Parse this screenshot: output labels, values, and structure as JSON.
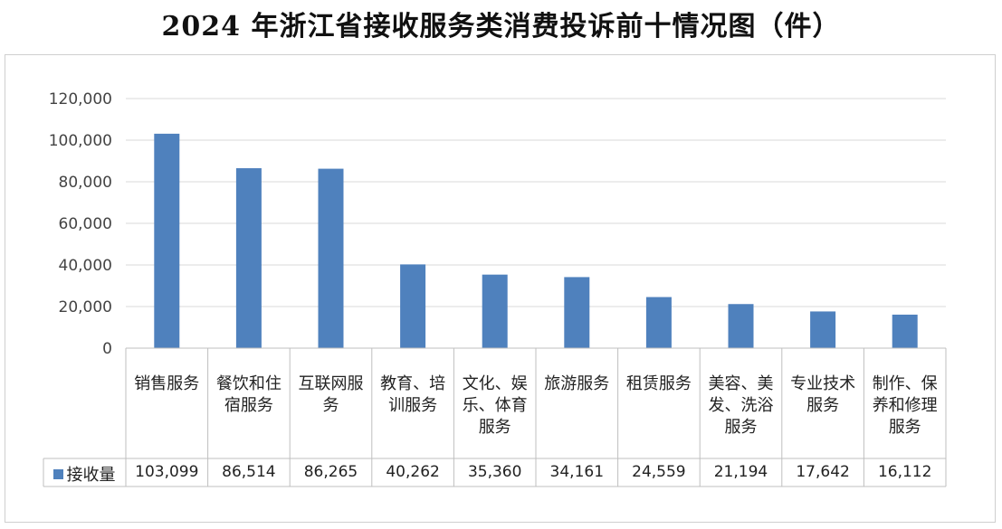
{
  "title": "2024 年浙江省接收服务类消费投诉前十情况图（件）",
  "colors": {
    "bar": "#4f81bd",
    "grid": "#d9d9d9",
    "table_border": "#bfbfbf"
  },
  "chart_data": {
    "type": "bar",
    "categories": [
      "销售服务",
      "餐饮和住宿服务",
      "互联网服务",
      "教育、培训服务",
      "文化、娱乐、体育服务",
      "旅游服务",
      "租赁服务",
      "美容、美发、洗浴服务",
      "专业技术服务",
      "制作、保养和修理服务"
    ],
    "series": [
      {
        "name": "接收量",
        "values": [
          103099,
          86514,
          86265,
          40262,
          35360,
          34161,
          24559,
          21194,
          17642,
          16112
        ]
      }
    ],
    "value_labels": [
      "103,099",
      "86,514",
      "86,265",
      "40,262",
      "35,360",
      "34,161",
      "24,559",
      "21,194",
      "17,642",
      "16,112"
    ],
    "yticks": [
      0,
      20000,
      40000,
      60000,
      80000,
      100000,
      120000
    ],
    "ytick_labels": [
      "0",
      "20,000",
      "40,000",
      "60,000",
      "80,000",
      "100,000",
      "120,000"
    ],
    "ylim": [
      0,
      120000
    ],
    "grid": true,
    "legend": "bottom-left data table",
    "data_table": true
  }
}
